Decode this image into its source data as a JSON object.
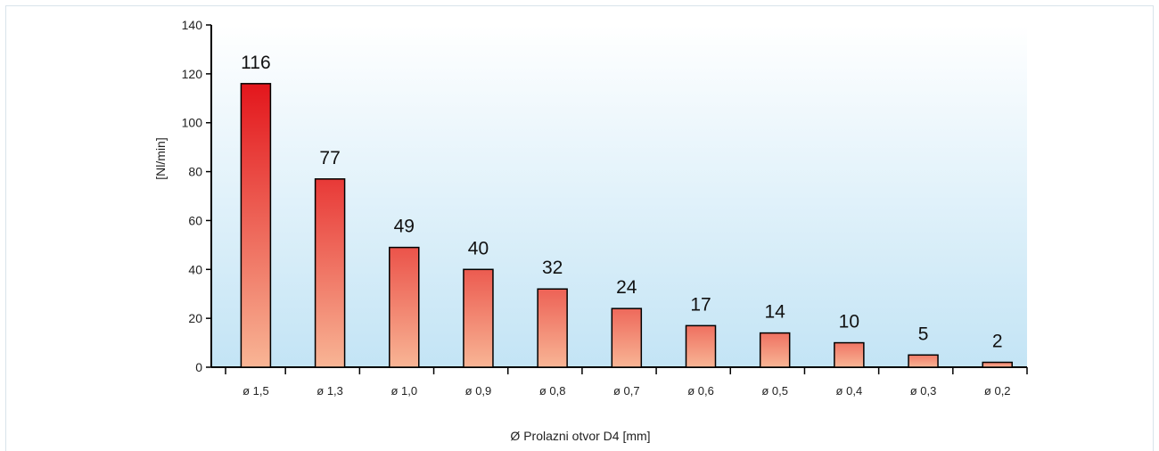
{
  "chart_data": {
    "type": "bar",
    "categories": [
      "ø 1,5",
      "ø 1,3",
      "ø 1,0",
      "ø 0,9",
      "ø 0,8",
      "ø 0,7",
      "ø 0,6",
      "ø 0,5",
      "ø 0,4",
      "ø 0,3",
      "ø 0,2"
    ],
    "values": [
      116,
      77,
      49,
      40,
      32,
      24,
      17,
      14,
      10,
      5,
      2
    ],
    "data_labels": [
      "116",
      "77",
      "49",
      "40",
      "32",
      "24",
      "17",
      "14",
      "10",
      "5",
      "2"
    ],
    "xlabel": "Ø Prolazni otvor D4 [mm]",
    "ylabel": "[Nl/min]",
    "ylim": [
      0,
      140
    ],
    "yticks": [
      "0",
      "20",
      "40",
      "60",
      "80",
      "100",
      "120",
      "140"
    ],
    "grid": false,
    "legend": "none",
    "colors": {
      "bar_top_dark": "#e3161c",
      "bar_bottom_light": "#f8b595",
      "plot_bg_top": "#ffffff",
      "plot_bg_bottom": "#c3e4f5",
      "frame_border": "#d9e3ea"
    }
  }
}
